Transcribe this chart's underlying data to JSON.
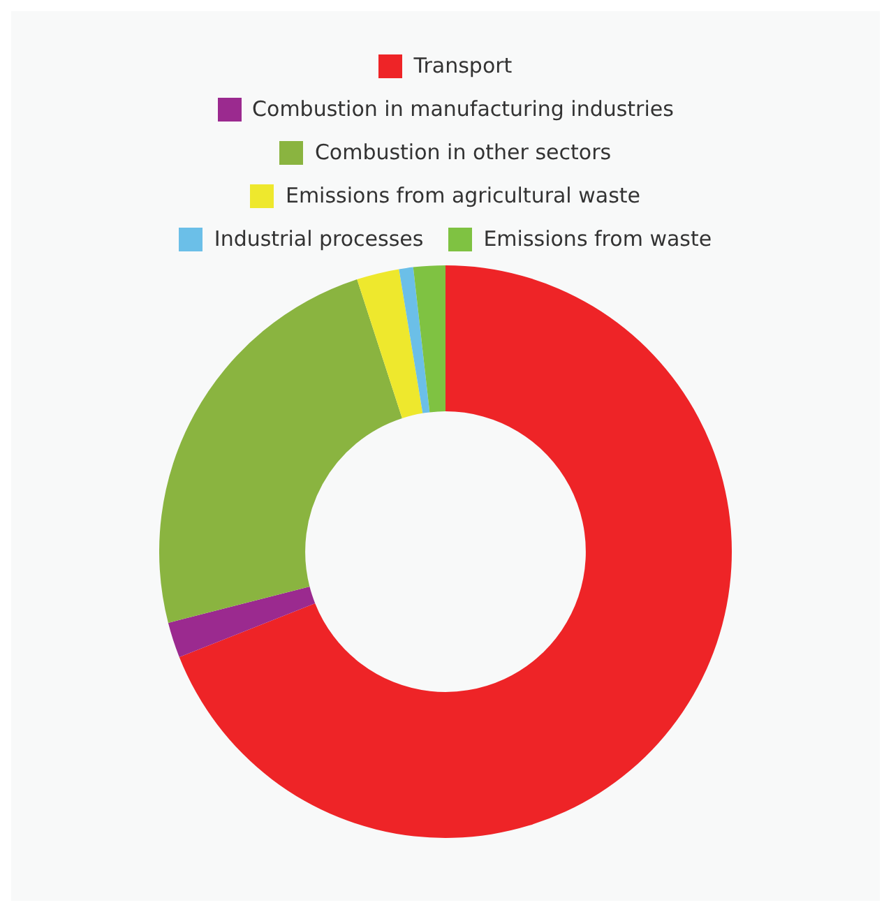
{
  "chart_data": {
    "type": "donut",
    "categories": [
      "Transport",
      "Combustion in manufacturing industries",
      "Combustion in other sectors",
      "Emissions from agricultural waste",
      "Industrial processes",
      "Emissions from waste"
    ],
    "values": [
      69,
      2,
      24,
      2.4,
      0.8,
      1.8
    ],
    "colors": [
      "#ee2427",
      "#9b2a8f",
      "#8ab440",
      "#eee82d",
      "#6bbfe8",
      "#7fc242"
    ],
    "legend": "top"
  }
}
